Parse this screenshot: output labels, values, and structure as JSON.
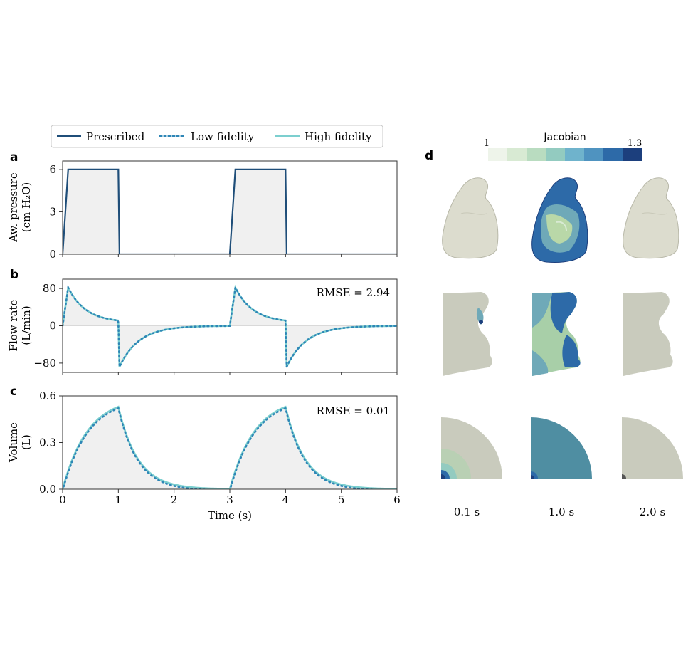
{
  "legend": {
    "items": [
      {
        "label": "Prescribed",
        "color": "#1f4e79",
        "style": "solid"
      },
      {
        "label": "Low fidelity",
        "color": "#2e86b6",
        "style": "dotted"
      },
      {
        "label": "High fidelity",
        "color": "#7ccfcf",
        "style": "solid"
      }
    ]
  },
  "panel_letters": {
    "a": "a",
    "b": "b",
    "c": "c",
    "d": "d"
  },
  "colors": {
    "prescribed": "#1f4e79",
    "low_fidelity": "#2e86b6",
    "high_fidelity": "#7ccfcf",
    "fill": "#f0f0f0",
    "zero_band": "#d9d9d9",
    "lung_surface": "#dcdcce",
    "lung_slice": "#c9cbbd"
  },
  "chart_data": [
    {
      "type": "line",
      "panel": "a",
      "ylabel_line1": "Aw. pressure",
      "ylabel_line2": "(cm H₂O)",
      "xlim": [
        0,
        6
      ],
      "ylim": [
        0,
        6.6
      ],
      "yticks": [
        "0",
        "3",
        "6"
      ],
      "ytick_values": [
        0,
        3,
        6
      ],
      "series": [
        {
          "name": "Prescribed",
          "x": [
            0,
            0.1,
            1.0,
            1.02,
            3.0,
            3.1,
            4.0,
            4.02,
            6.0
          ],
          "y": [
            0,
            6,
            6,
            0,
            0,
            6,
            6,
            0,
            0
          ]
        }
      ]
    },
    {
      "type": "line",
      "panel": "b",
      "ylabel_line1": "Flow rate",
      "ylabel_line2": "(L/min)",
      "annotation": "RMSE = 2.94",
      "xlim": [
        0,
        6
      ],
      "ylim": [
        -100,
        100
      ],
      "yticks": [
        "80",
        "0",
        "−80"
      ],
      "ytick_values": [
        80,
        0,
        -80
      ],
      "inspiratory_peak": 82,
      "end_inspiration": 7,
      "expiratory_peak": -88,
      "time_constant": 0.35
    },
    {
      "type": "line",
      "panel": "c",
      "ylabel_line1": "Volume",
      "ylabel_line2": "(L)",
      "xlabel": "Time (s)",
      "annotation": "RMSE = 0.01",
      "xlim": [
        0,
        6
      ],
      "ylim": [
        0,
        0.6
      ],
      "yticks": [
        "0.0",
        "0.3",
        "0.6"
      ],
      "ytick_values": [
        0,
        0.3,
        0.6
      ],
      "xticks": [
        "0",
        "1",
        "2",
        "3",
        "4",
        "5",
        "6"
      ],
      "xtick_values": [
        0,
        1,
        2,
        3,
        4,
        5,
        6
      ],
      "peak_volume": 0.53,
      "time_constant": 0.35
    }
  ],
  "colorbar": {
    "title": "Jacobian",
    "min_label": "1",
    "max_label": "1.3",
    "colors": [
      "#eef4ea",
      "#d8ead3",
      "#b9dcc0",
      "#93cbc0",
      "#6fb3cc",
      "#4f93c0",
      "#2d6aa8",
      "#1c3f7d"
    ]
  },
  "time_labels": [
    "0.1 s",
    "1.0 s",
    "2.0 s"
  ]
}
